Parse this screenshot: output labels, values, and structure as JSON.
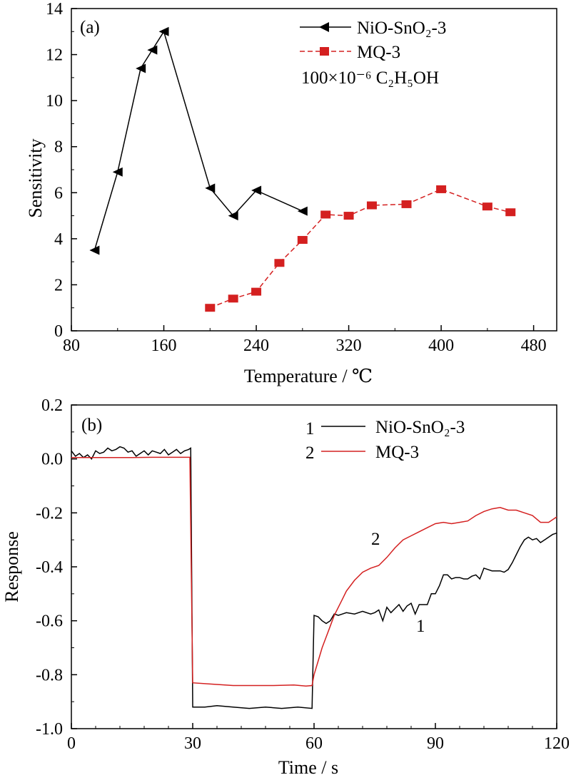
{
  "chart_data": [
    {
      "type": "line",
      "panel_label": "(a)",
      "xlabel": "Temperature / ℃",
      "ylabel": "Sensitivity",
      "xlim": [
        80,
        500
      ],
      "ylim": [
        0,
        14
      ],
      "xticks": [
        80,
        160,
        240,
        320,
        400,
        480
      ],
      "yticks": [
        0,
        2,
        4,
        6,
        8,
        10,
        12,
        14
      ],
      "grid": false,
      "legend_position": "top-right",
      "annotation": "100×10⁻⁶ C₂H₅OH",
      "series": [
        {
          "name": "NiO-SnO₂-3",
          "color": "#000000",
          "marker": "left-triangle",
          "x": [
            100,
            120,
            140,
            150,
            160,
            200,
            220,
            240,
            280
          ],
          "y": [
            3.5,
            6.9,
            11.4,
            12.2,
            13.0,
            6.2,
            5.0,
            6.1,
            5.2
          ]
        },
        {
          "name": "MQ-3",
          "color": "#d42020",
          "marker": "square",
          "x": [
            200,
            220,
            240,
            260,
            280,
            300,
            320,
            340,
            370,
            400,
            440,
            460
          ],
          "y": [
            1.0,
            1.4,
            1.7,
            2.95,
            3.95,
            5.05,
            5.0,
            5.45,
            5.5,
            6.15,
            5.4,
            5.15
          ]
        }
      ]
    },
    {
      "type": "line",
      "panel_label": "(b)",
      "xlabel": "Time / s",
      "ylabel": "Response",
      "xlim": [
        0,
        120
      ],
      "ylim": [
        -1.0,
        0.2
      ],
      "xticks": [
        0,
        30,
        60,
        90,
        120
      ],
      "yticks": [
        0.2,
        0.0,
        -0.2,
        -0.4,
        -0.6,
        -0.8,
        -1.0
      ],
      "grid": false,
      "legend_position": "top-right",
      "series": [
        {
          "name": "NiO-SnO₂-3",
          "index_label": "1",
          "color": "#000000",
          "x": [
            0,
            1,
            2,
            3,
            4,
            5,
            6,
            7,
            8,
            9,
            10,
            11,
            12,
            13,
            14,
            15,
            16,
            17,
            18,
            19,
            20,
            21,
            22,
            23,
            24,
            25,
            26,
            27,
            28,
            29,
            29.5,
            30,
            33,
            36,
            40,
            44,
            48,
            52,
            56,
            59.5,
            60,
            61,
            62,
            63,
            64,
            65,
            66,
            67,
            68,
            70,
            72,
            74,
            75,
            76,
            77,
            78,
            79,
            80,
            81,
            82,
            83,
            84,
            85,
            86,
            87,
            88,
            89,
            90,
            91,
            92,
            93,
            94,
            95,
            96,
            97,
            98,
            99,
            100,
            101,
            102,
            103,
            104,
            105,
            106,
            107,
            108,
            109,
            110,
            111,
            112,
            113,
            114,
            115,
            116,
            117,
            118,
            119,
            120
          ],
          "y": [
            0.03,
            0.01,
            0.02,
            0.005,
            0.015,
            0.0,
            0.03,
            0.02,
            0.025,
            0.04,
            0.03,
            0.035,
            0.045,
            0.04,
            0.025,
            0.03,
            0.01,
            0.02,
            0.03,
            0.015,
            0.03,
            0.025,
            0.02,
            0.035,
            0.015,
            0.025,
            0.035,
            0.02,
            0.03,
            0.035,
            0.04,
            -0.92,
            -0.92,
            -0.915,
            -0.92,
            -0.925,
            -0.92,
            -0.925,
            -0.92,
            -0.925,
            -0.58,
            -0.585,
            -0.6,
            -0.61,
            -0.6,
            -0.575,
            -0.58,
            -0.575,
            -0.57,
            -0.575,
            -0.565,
            -0.575,
            -0.57,
            -0.56,
            -0.6,
            -0.55,
            -0.57,
            -0.555,
            -0.54,
            -0.565,
            -0.545,
            -0.535,
            -0.575,
            -0.54,
            -0.54,
            -0.54,
            -0.5,
            -0.5,
            -0.47,
            -0.43,
            -0.43,
            -0.445,
            -0.44,
            -0.44,
            -0.445,
            -0.445,
            -0.435,
            -0.43,
            -0.445,
            -0.405,
            -0.41,
            -0.415,
            -0.415,
            -0.415,
            -0.42,
            -0.41,
            -0.385,
            -0.355,
            -0.325,
            -0.3,
            -0.29,
            -0.3,
            -0.295,
            -0.31,
            -0.3,
            -0.29,
            -0.28,
            -0.275
          ]
        },
        {
          "name": "MQ-3",
          "index_label": "2",
          "color": "#d42020",
          "x": [
            0,
            5,
            10,
            15,
            20,
            25,
            29.3,
            30,
            35,
            40,
            45,
            50,
            55,
            58,
            59.5,
            60,
            61,
            62,
            63,
            64,
            65,
            66,
            67,
            68,
            70,
            72,
            74,
            76,
            78,
            80,
            82,
            84,
            86,
            88,
            90,
            92,
            94,
            96,
            98,
            100,
            102,
            104,
            106,
            108,
            110,
            112,
            114,
            116,
            118,
            120
          ],
          "y": [
            0.005,
            0.005,
            0.005,
            0.005,
            0.006,
            0.006,
            0.006,
            -0.83,
            -0.835,
            -0.84,
            -0.84,
            -0.84,
            -0.838,
            -0.842,
            -0.84,
            -0.8,
            -0.75,
            -0.7,
            -0.66,
            -0.62,
            -0.58,
            -0.55,
            -0.52,
            -0.49,
            -0.45,
            -0.42,
            -0.405,
            -0.395,
            -0.365,
            -0.33,
            -0.3,
            -0.285,
            -0.27,
            -0.255,
            -0.24,
            -0.235,
            -0.24,
            -0.235,
            -0.23,
            -0.21,
            -0.195,
            -0.185,
            -0.18,
            -0.19,
            -0.19,
            -0.2,
            -0.21,
            -0.235,
            -0.235,
            -0.215
          ]
        }
      ]
    }
  ]
}
